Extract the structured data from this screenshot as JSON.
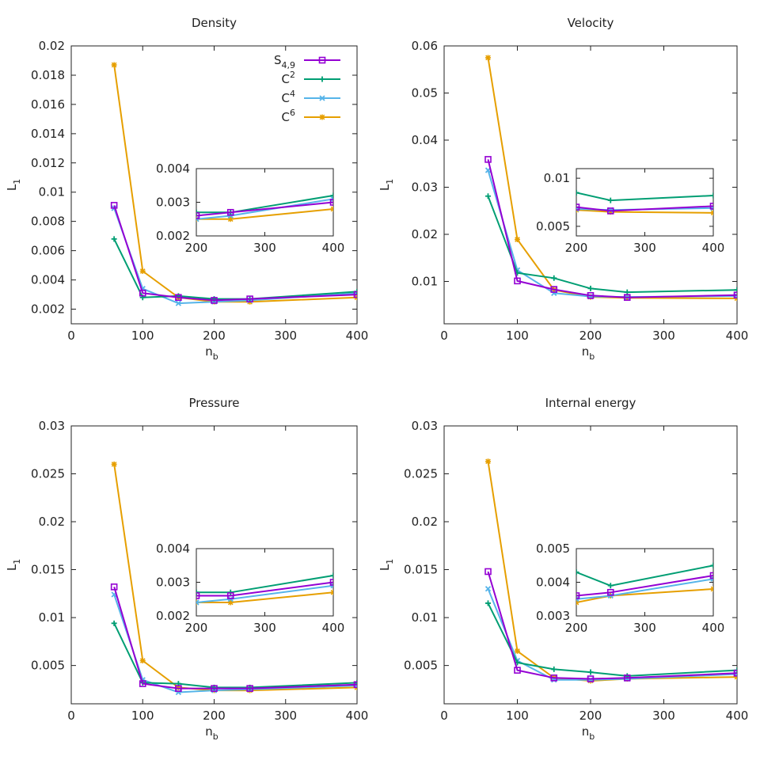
{
  "legend": [
    {
      "label": "S",
      "sub": "4,9",
      "sup": "",
      "color": "#9400d3",
      "marker": "square"
    },
    {
      "label": "C",
      "sub": "",
      "sup": "2",
      "color": "#009e73",
      "marker": "plus"
    },
    {
      "label": "C",
      "sub": "",
      "sup": "4",
      "color": "#56b4e9",
      "marker": "x"
    },
    {
      "label": "C",
      "sub": "",
      "sup": "6",
      "color": "#e69f00",
      "marker": "star"
    }
  ],
  "chart_data": [
    {
      "type": "line",
      "title": "Density",
      "xlabel": "n",
      "xlabel_sub": "b",
      "ylabel": "L",
      "ylabel_sub": "1",
      "x": [
        60,
        100,
        150,
        200,
        250,
        400
      ],
      "xlim": [
        0,
        400
      ],
      "ylim": [
        0.001,
        0.02
      ],
      "xticks": [
        0,
        100,
        200,
        300,
        400
      ],
      "xtick_labels": [
        "0",
        "100",
        "200",
        "300",
        "400"
      ],
      "yticks": [
        0.002,
        0.004,
        0.006,
        0.008,
        0.01,
        0.012,
        0.014,
        0.016,
        0.018,
        0.02
      ],
      "ytick_labels": [
        "0.002",
        "0.004",
        "0.006",
        "0.008",
        "0.01",
        "0.012",
        "0.014",
        "0.016",
        "0.018",
        "0.02"
      ],
      "series": [
        {
          "name": "S4,9",
          "values": [
            0.0091,
            0.0031,
            0.0028,
            0.0026,
            0.0027,
            0.003
          ]
        },
        {
          "name": "C2",
          "values": [
            0.0068,
            0.0028,
            0.0029,
            0.0027,
            0.0027,
            0.0032
          ]
        },
        {
          "name": "C4",
          "values": [
            0.0089,
            0.0034,
            0.0024,
            0.0025,
            0.0026,
            0.0031
          ]
        },
        {
          "name": "C6",
          "values": [
            0.0187,
            0.0046,
            0.0028,
            0.0025,
            0.0025,
            0.0028
          ]
        }
      ],
      "inset": {
        "xlim": [
          200,
          400
        ],
        "ylim": [
          0.002,
          0.004
        ],
        "xticks": [
          200,
          300,
          400
        ],
        "xtick_labels": [
          "200",
          "300",
          "400"
        ],
        "yticks": [
          0.002,
          0.003,
          0.004
        ],
        "ytick_labels": [
          "0.002",
          "0.003",
          "0.004"
        ]
      }
    },
    {
      "type": "line",
      "title": "Velocity",
      "xlabel": "n",
      "xlabel_sub": "b",
      "ylabel": "L",
      "ylabel_sub": "1",
      "x": [
        60,
        100,
        150,
        200,
        250,
        400
      ],
      "xlim": [
        0,
        400
      ],
      "ylim": [
        0.001,
        0.06
      ],
      "xticks": [
        0,
        100,
        200,
        300,
        400
      ],
      "xtick_labels": [
        "0",
        "100",
        "200",
        "300",
        "400"
      ],
      "yticks": [
        0.01,
        0.02,
        0.03,
        0.04,
        0.05,
        0.06
      ],
      "ytick_labels": [
        "0.01",
        "0.02",
        "0.03",
        "0.04",
        "0.05",
        "0.06"
      ],
      "series": [
        {
          "name": "S4,9",
          "values": [
            0.0359,
            0.0101,
            0.0083,
            0.007,
            0.0066,
            0.0071
          ]
        },
        {
          "name": "C2",
          "values": [
            0.0281,
            0.0118,
            0.0107,
            0.0085,
            0.0077,
            0.0082
          ]
        },
        {
          "name": "C4",
          "values": [
            0.0336,
            0.0124,
            0.0075,
            0.0068,
            0.0067,
            0.0069
          ]
        },
        {
          "name": "C6",
          "values": [
            0.0575,
            0.0189,
            0.0082,
            0.0067,
            0.0065,
            0.0064
          ]
        }
      ],
      "inset": {
        "xlim": [
          200,
          400
        ],
        "ylim": [
          0.004,
          0.011
        ],
        "xticks": [
          200,
          300,
          400
        ],
        "xtick_labels": [
          "200",
          "300",
          "400"
        ],
        "yticks": [
          0.005,
          0.01
        ],
        "ytick_labels": [
          "0.005",
          "0.01"
        ]
      }
    },
    {
      "type": "line",
      "title": "Pressure",
      "xlabel": "n",
      "xlabel_sub": "b",
      "ylabel": "L",
      "ylabel_sub": "1",
      "x": [
        60,
        100,
        150,
        200,
        250,
        400
      ],
      "xlim": [
        0,
        400
      ],
      "ylim": [
        0.001,
        0.03
      ],
      "xticks": [
        0,
        100,
        200,
        300,
        400
      ],
      "xtick_labels": [
        "0",
        "100",
        "200",
        "300",
        "400"
      ],
      "yticks": [
        0.005,
        0.01,
        0.015,
        0.02,
        0.025,
        0.03
      ],
      "ytick_labels": [
        "0.005",
        "0.01",
        "0.015",
        "0.02",
        "0.025",
        "0.03"
      ],
      "series": [
        {
          "name": "S4,9",
          "values": [
            0.0132,
            0.0031,
            0.0026,
            0.0026,
            0.0026,
            0.003
          ]
        },
        {
          "name": "C2",
          "values": [
            0.0094,
            0.0032,
            0.0031,
            0.0027,
            0.0027,
            0.0032
          ]
        },
        {
          "name": "C4",
          "values": [
            0.0124,
            0.0035,
            0.0022,
            0.0024,
            0.0025,
            0.0029
          ]
        },
        {
          "name": "C6",
          "values": [
            0.026,
            0.0055,
            0.0027,
            0.0024,
            0.0024,
            0.0027
          ]
        }
      ],
      "inset": {
        "xlim": [
          200,
          400
        ],
        "ylim": [
          0.002,
          0.004
        ],
        "xticks": [
          200,
          300,
          400
        ],
        "xtick_labels": [
          "200",
          "300",
          "400"
        ],
        "yticks": [
          0.002,
          0.003,
          0.004
        ],
        "ytick_labels": [
          "0.002",
          "0.003",
          "0.004"
        ]
      }
    },
    {
      "type": "line",
      "title": "Internal energy",
      "xlabel": "n",
      "xlabel_sub": "b",
      "ylabel": "L",
      "ylabel_sub": "1",
      "x": [
        60,
        100,
        150,
        200,
        250,
        400
      ],
      "xlim": [
        0,
        400
      ],
      "ylim": [
        0.001,
        0.03
      ],
      "xticks": [
        0,
        100,
        200,
        300,
        400
      ],
      "xtick_labels": [
        "0",
        "100",
        "200",
        "300",
        "400"
      ],
      "yticks": [
        0.005,
        0.01,
        0.015,
        0.02,
        0.025,
        0.03
      ],
      "ytick_labels": [
        "0.005",
        "0.01",
        "0.015",
        "0.02",
        "0.025",
        "0.03"
      ],
      "series": [
        {
          "name": "S4,9",
          "values": [
            0.0148,
            0.0045,
            0.0037,
            0.0036,
            0.0037,
            0.0042
          ]
        },
        {
          "name": "C2",
          "values": [
            0.0115,
            0.0053,
            0.0046,
            0.0043,
            0.0039,
            0.0045
          ]
        },
        {
          "name": "C4",
          "values": [
            0.013,
            0.0055,
            0.0035,
            0.0035,
            0.0036,
            0.0041
          ]
        },
        {
          "name": "C6",
          "values": [
            0.0263,
            0.0065,
            0.0037,
            0.0034,
            0.0036,
            0.0038
          ]
        }
      ],
      "inset": {
        "xlim": [
          200,
          400
        ],
        "ylim": [
          0.003,
          0.005
        ],
        "xticks": [
          200,
          300,
          400
        ],
        "xtick_labels": [
          "200",
          "300",
          "400"
        ],
        "yticks": [
          0.003,
          0.004,
          0.005
        ],
        "ytick_labels": [
          "0.003",
          "0.004",
          "0.005"
        ]
      }
    }
  ]
}
